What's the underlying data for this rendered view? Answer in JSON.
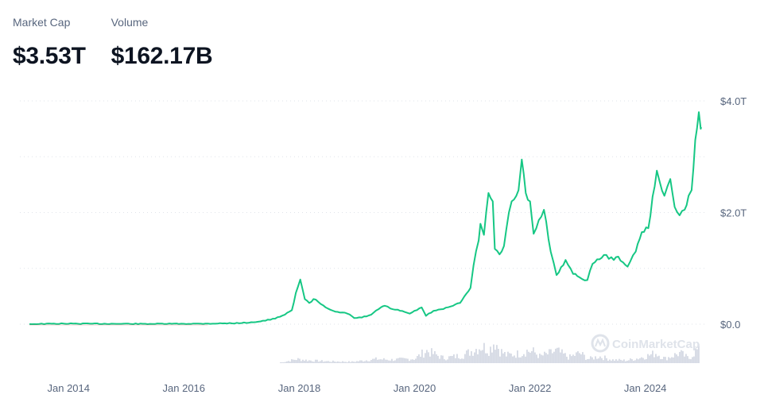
{
  "stats": {
    "market_cap": {
      "label": "Market Cap",
      "value": "$3.53T"
    },
    "volume": {
      "label": "Volume",
      "value": "$162.17B"
    }
  },
  "watermark": "CoinMarketCap",
  "colors": {
    "line": "#16c784",
    "volume": "#c9cfdc",
    "grid": "#dfe3ea",
    "tick": "#58667e"
  },
  "chart_data": {
    "type": "line",
    "title": "",
    "xlabel": "",
    "ylabel": "",
    "x_ticks": [
      "Jan 2014",
      "Jan 2016",
      "Jan 2018",
      "Jan 2020",
      "Jan 2022",
      "Jan 2024"
    ],
    "y_ticks": [
      "$0.0",
      "$2.0T",
      "$4.0T"
    ],
    "y_tick_values": [
      0,
      2.0,
      4.0
    ],
    "ylim": [
      0,
      4.0
    ],
    "xlim": [
      "2013-04-28",
      "2024-12-20"
    ],
    "grid": true,
    "y_axis_position": "right",
    "series": [
      {
        "values_unit": "trillion USD",
        "x": [
          "2013-04-28",
          "2013-12-01",
          "2014-06-01",
          "2015-06-01",
          "2016-06-01",
          "2017-01-01",
          "2017-05-01",
          "2017-08-01",
          "2017-10-01",
          "2017-11-15",
          "2017-12-10",
          "2018-01-07",
          "2018-02-05",
          "2018-03-05",
          "2018-04-01",
          "2018-05-01",
          "2018-07-01",
          "2018-09-01",
          "2018-11-01",
          "2018-12-15",
          "2019-02-01",
          "2019-04-01",
          "2019-06-01",
          "2019-06-26",
          "2019-08-01",
          "2019-10-01",
          "2019-12-01",
          "2020-02-15",
          "2020-03-13",
          "2020-05-01",
          "2020-07-01",
          "2020-09-01",
          "2020-10-15",
          "2020-11-25",
          "2020-12-20",
          "2021-01-08",
          "2021-02-10",
          "2021-02-21",
          "2021-03-15",
          "2021-04-13",
          "2021-05-10",
          "2021-05-23",
          "2021-06-22",
          "2021-07-20",
          "2021-08-20",
          "2021-09-07",
          "2021-10-20",
          "2021-11-10",
          "2021-12-05",
          "2022-01-01",
          "2022-01-24",
          "2022-03-30",
          "2022-05-12",
          "2022-06-18",
          "2022-08-14",
          "2022-10-01",
          "2022-11-10",
          "2022-12-30",
          "2023-02-01",
          "2023-04-14",
          "2023-06-15",
          "2023-07-14",
          "2023-09-11",
          "2023-11-01",
          "2023-12-10",
          "2024-01-20",
          "2024-03-14",
          "2024-04-01",
          "2024-05-01",
          "2024-06-07",
          "2024-07-05",
          "2024-08-05",
          "2024-09-06",
          "2024-10-01",
          "2024-10-20",
          "2024-11-12",
          "2024-12-05",
          "2024-12-17",
          "2024-12-20"
        ],
        "values": [
          0.002,
          0.01,
          0.008,
          0.005,
          0.01,
          0.02,
          0.05,
          0.1,
          0.17,
          0.25,
          0.56,
          0.8,
          0.45,
          0.38,
          0.45,
          0.4,
          0.28,
          0.22,
          0.19,
          0.11,
          0.12,
          0.17,
          0.3,
          0.33,
          0.28,
          0.24,
          0.19,
          0.3,
          0.15,
          0.24,
          0.27,
          0.33,
          0.38,
          0.55,
          0.65,
          1.05,
          1.5,
          1.8,
          1.6,
          2.35,
          2.2,
          1.35,
          1.25,
          1.4,
          2.0,
          2.2,
          2.4,
          2.95,
          2.35,
          2.2,
          1.62,
          2.05,
          1.3,
          0.88,
          1.15,
          0.9,
          0.84,
          0.79,
          1.08,
          1.24,
          1.15,
          1.21,
          1.03,
          1.3,
          1.65,
          1.72,
          2.75,
          2.55,
          2.3,
          2.6,
          2.1,
          1.95,
          2.05,
          2.3,
          2.4,
          3.3,
          3.8,
          3.5,
          3.53
        ]
      }
    ],
    "volume_series": {
      "values_unit": "relative",
      "x": [
        "2017-09-01",
        "2017-12-15",
        "2018-03-01",
        "2018-07-01",
        "2018-12-01",
        "2019-05-01",
        "2019-08-01",
        "2020-01-01",
        "2020-03-12",
        "2020-07-01",
        "2020-11-01",
        "2021-01-10",
        "2021-02-22",
        "2021-04-18",
        "2021-05-19",
        "2021-06-22",
        "2021-08-01",
        "2021-10-01",
        "2021-11-10",
        "2021-12-04",
        "2022-01-22",
        "2022-03-01",
        "2022-05-10",
        "2022-06-14",
        "2022-09-01",
        "2022-11-09",
        "2023-01-01",
        "2023-03-11",
        "2023-06-01",
        "2023-09-01",
        "2023-11-01",
        "2024-01-11",
        "2024-03-05",
        "2024-05-01",
        "2024-08-05",
        "2024-10-01",
        "2024-11-12",
        "2024-12-06",
        "2024-12-20"
      ],
      "values": [
        0.02,
        0.18,
        0.12,
        0.08,
        0.06,
        0.18,
        0.15,
        0.2,
        0.55,
        0.22,
        0.35,
        0.6,
        0.75,
        0.6,
        1.0,
        0.55,
        0.35,
        0.4,
        0.45,
        0.55,
        0.5,
        0.3,
        0.45,
        0.55,
        0.25,
        0.45,
        0.18,
        0.3,
        0.15,
        0.12,
        0.2,
        0.32,
        0.45,
        0.2,
        0.45,
        0.2,
        0.55,
        0.6,
        0.5
      ]
    }
  }
}
